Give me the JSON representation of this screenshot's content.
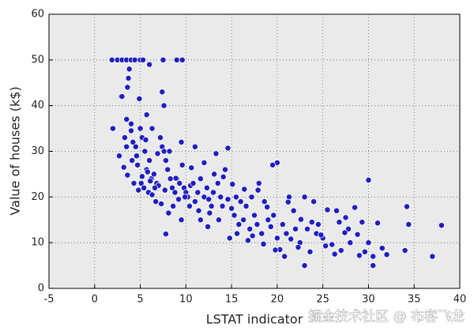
{
  "chart_data": {
    "type": "scatter",
    "xlabel": "LSTAT indicator",
    "ylabel": "Value of houses (k$)",
    "watermark": "掘金技术社区 @ 布客飞龙",
    "color": "#1f1fbf",
    "grid": true,
    "xlim": [
      -5,
      40
    ],
    "xticks": [
      -5,
      0,
      5,
      10,
      15,
      20,
      25,
      30,
      35,
      40
    ],
    "ylim": [
      0,
      60
    ],
    "yticks": [
      0,
      10,
      20,
      30,
      40,
      50,
      60
    ],
    "x": [
      2.9,
      3.3,
      3.5,
      4.0,
      4.2,
      4.5,
      4.6,
      4.7,
      5.0,
      5.2,
      5.5,
      5.7,
      6.0,
      6.2,
      6.5,
      6.8,
      7.0,
      7.2,
      7.4,
      7.6,
      7.8,
      8.0,
      8.3,
      8.5,
      8.8,
      9.0,
      9.3,
      9.5,
      9.6,
      9.8,
      10.0,
      10.2,
      10.5,
      10.8,
      11.0,
      11.3,
      11.6,
      12.0,
      12.3,
      12.5,
      12.8,
      13.0,
      13.3,
      13.5,
      13.8,
      14.0,
      14.3,
      14.6,
      15.0,
      15.3,
      15.5,
      15.8,
      16.0,
      16.3,
      16.6,
      17.0,
      17.2,
      17.5,
      17.8,
      18.0,
      18.3,
      18.6,
      19.0,
      19.3,
      19.6,
      20.0,
      20.3,
      20.6,
      21.0,
      21.3,
      21.5,
      21.8,
      22.0,
      22.5,
      23.0,
      23.3,
      23.6,
      24.0,
      24.3,
      24.5,
      25.0,
      25.5,
      26.0,
      26.5,
      26.8,
      27.0,
      27.5,
      27.8,
      28.0,
      28.5,
      29.0,
      29.3,
      29.6,
      30.0,
      30.5,
      31.0,
      31.5,
      32.0,
      5.1,
      5.4,
      5.9,
      6.3,
      6.7,
      7.3,
      8.1,
      8.6,
      4.8,
      4.3,
      5.2,
      5.8,
      6.1,
      6.6,
      7.7,
      9.2,
      9.9,
      10.4,
      11.4,
      12.6,
      13.6,
      14.8,
      15.6,
      16.8,
      17.3,
      18.5,
      19.8,
      20.8,
      22.3,
      24.8,
      26.3,
      1.9,
      2.5,
      3.0,
      3.5,
      4.0,
      4.4,
      5.0,
      5.3,
      7.5,
      9.0,
      9.6,
      6.0,
      2.0,
      3.0,
      3.6,
      3.7,
      3.8,
      4.0,
      3.5,
      4.9,
      5.7,
      6.3,
      7.4,
      7.6,
      2.7,
      3.2,
      3.6,
      4.1,
      34.0,
      37.0,
      38.0,
      34.4,
      34.2,
      30.0,
      23.0,
      30.5,
      20.0,
      19.5,
      14.6,
      11.0,
      7.8,
      11.6,
      12.4,
      9.5,
      27.4,
      28.8,
      25.3,
      23.8,
      22.6,
      21.2,
      18.9,
      17.9,
      16.4,
      15.1,
      14.1,
      13.1,
      12.0,
      10.6,
      8.9,
      8.2,
      6.9,
      5.6
    ],
    "values": [
      42,
      33,
      31,
      34.5,
      32,
      31,
      29,
      27,
      35,
      33,
      30,
      26,
      28,
      24,
      25,
      23,
      22.5,
      33,
      31,
      30,
      28,
      26,
      24,
      22,
      21,
      24,
      23,
      32,
      27,
      22,
      21,
      20,
      22.5,
      23,
      19,
      21,
      24,
      20,
      22,
      19.5,
      18,
      21,
      29.5,
      23,
      20,
      18,
      26,
      19.5,
      17.5,
      16,
      20,
      14,
      19,
      15,
      18,
      13,
      20,
      16,
      14,
      23,
      12,
      19,
      15,
      13.5,
      16,
      11,
      8.5,
      14,
      12,
      20,
      10.8,
      17,
      13,
      10,
      20,
      13,
      8,
      19,
      12,
      14,
      11,
      17.2,
      9.6,
      17,
      14.5,
      8.3,
      15.5,
      13,
      10,
      17.7,
      7.2,
      14.5,
      8,
      10,
      7,
      14.3,
      8.8,
      7.4,
      23,
      22,
      21,
      20.5,
      19,
      18.5,
      16.5,
      18,
      21.5,
      23,
      24.5,
      25.5,
      23.5,
      22,
      21.5,
      19.5,
      20,
      18,
      17,
      16.5,
      15,
      11,
      12,
      10.5,
      11.5,
      9.7,
      8.4,
      7,
      9,
      11.7,
      7.5,
      50,
      50,
      50,
      50,
      50,
      50,
      50,
      50,
      50,
      50,
      50,
      49,
      35,
      42,
      44,
      46,
      48,
      36,
      37,
      41.5,
      38,
      35,
      43,
      40,
      29,
      26.5,
      24.8,
      28,
      8.3,
      7,
      13.8,
      14,
      17.9,
      23.7,
      5,
      5,
      27.5,
      27,
      30.7,
      31,
      11.9,
      15,
      13.5,
      15,
      12.2,
      11.8,
      9.3,
      14.5,
      15.1,
      18.9,
      17.8,
      21.5,
      21.7,
      22.8,
      24.4,
      25,
      27.5,
      26.4,
      24.1,
      30,
      29.5,
      32.5
    ]
  }
}
